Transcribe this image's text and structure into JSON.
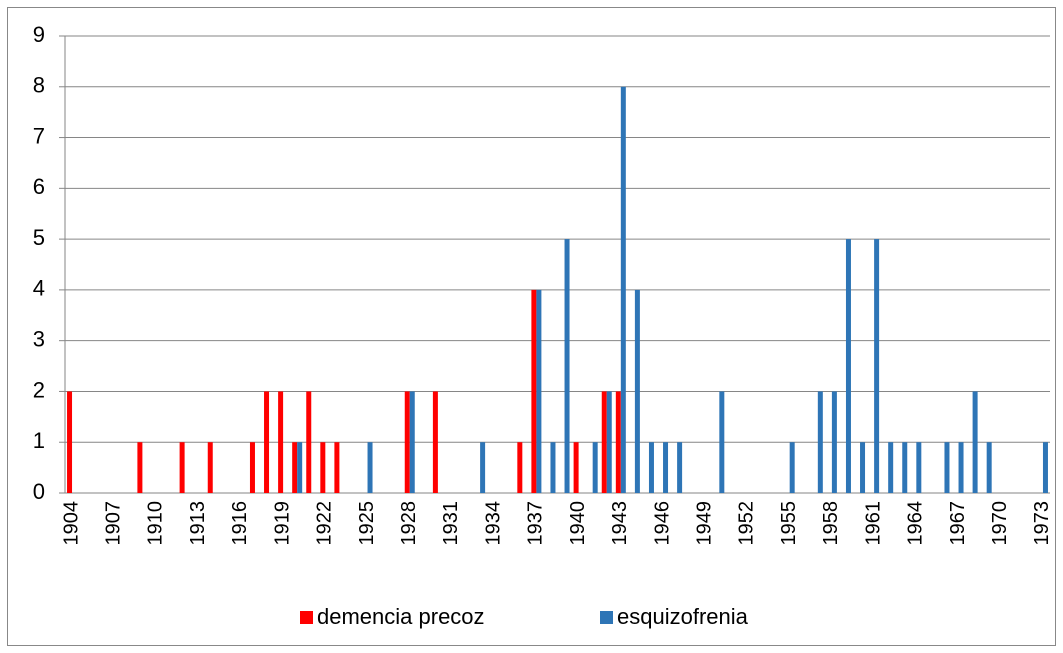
{
  "chart_data": {
    "type": "bar",
    "categories": [
      "1904",
      null,
      null,
      "1907",
      null,
      null,
      "1910",
      null,
      null,
      "1913",
      null,
      null,
      "1916",
      null,
      null,
      "1919",
      null,
      null,
      "1922",
      null,
      null,
      "1925",
      null,
      null,
      "1928",
      null,
      null,
      "1931",
      null,
      null,
      "1934",
      null,
      null,
      "1937",
      null,
      null,
      "1940",
      null,
      null,
      "1943",
      null,
      null,
      "1946",
      null,
      null,
      "1949",
      null,
      null,
      "1952",
      null,
      null,
      "1955",
      null,
      null,
      "1958",
      null,
      null,
      "1961",
      null,
      null,
      "1964",
      null,
      null,
      "1967",
      null,
      null,
      "1970",
      null,
      null,
      "1973"
    ],
    "series": [
      {
        "name": "demencia precoz",
        "color": "#ff0000",
        "values": [
          2,
          null,
          null,
          null,
          null,
          1,
          null,
          null,
          1,
          null,
          1,
          null,
          null,
          1,
          2,
          2,
          1,
          2,
          1,
          1,
          null,
          null,
          null,
          null,
          2,
          null,
          2,
          null,
          null,
          null,
          null,
          null,
          1,
          4,
          null,
          null,
          1,
          null,
          2,
          2,
          null,
          null,
          null,
          null,
          null,
          null,
          null,
          null,
          null,
          null,
          null,
          null,
          null,
          null,
          null,
          null,
          null,
          null,
          null,
          null,
          null,
          null,
          null,
          null,
          null,
          null,
          null,
          null,
          null,
          null
        ]
      },
      {
        "name": "esquizofrenia",
        "color": "#2e75b6",
        "values": [
          null,
          null,
          null,
          null,
          null,
          null,
          null,
          null,
          null,
          null,
          null,
          null,
          null,
          null,
          null,
          null,
          1,
          null,
          null,
          null,
          null,
          1,
          null,
          null,
          2,
          null,
          null,
          null,
          null,
          1,
          null,
          null,
          null,
          4,
          1,
          5,
          null,
          1,
          2,
          8,
          4,
          1,
          1,
          1,
          null,
          null,
          2,
          null,
          null,
          null,
          null,
          1,
          null,
          2,
          2,
          5,
          1,
          5,
          1,
          1,
          1,
          null,
          1,
          1,
          2,
          1,
          null,
          null,
          null,
          1
        ]
      }
    ],
    "ylim": [
      0,
      9
    ],
    "yticks": [
      0,
      1,
      2,
      3,
      4,
      5,
      6,
      7,
      8,
      9
    ],
    "grid": true,
    "legend": "bottom"
  }
}
